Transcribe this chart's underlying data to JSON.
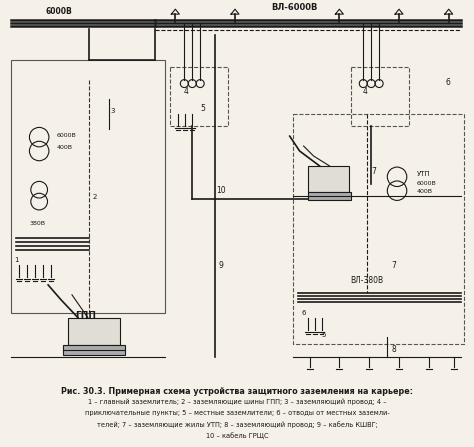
{
  "title": "Рис. 30.3. Примерная схема устройства защитного заземления на карьере:",
  "caption_lines": [
    "1 – главный заземлитель; 2 – заземляющие шины ГПП; 3 – заземляющий провод; 4 –",
    "приключательные пункты; 5 – местные заземлители; 6 – отводы от местных заземли-",
    "телей; 7 – заземляющие жилы УТП; 8 – заземляющий провод; 9 – кабель КШВГ;",
    "10 – кабель ГРЩС"
  ],
  "bg_color": "#f5f0e8",
  "line_color": "#1a1a1a"
}
